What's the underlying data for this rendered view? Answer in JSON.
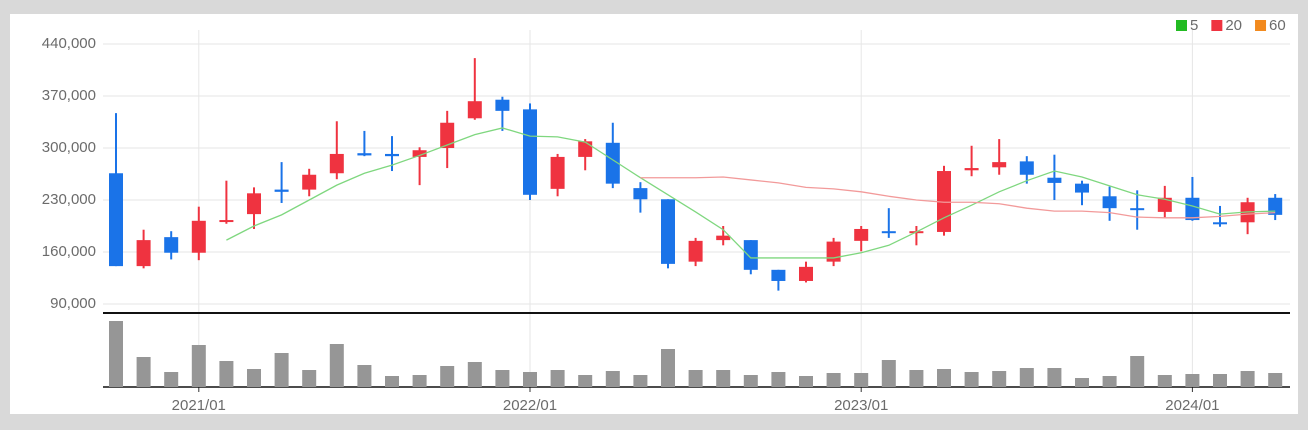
{
  "chart_data": {
    "type": "candlestick",
    "categories": [
      null,
      null,
      null,
      "2021/01",
      null,
      null,
      null,
      null,
      null,
      null,
      null,
      null,
      null,
      null,
      null,
      "2022/01",
      null,
      null,
      null,
      null,
      null,
      null,
      null,
      null,
      null,
      null,
      null,
      "2023/01",
      null,
      null,
      null,
      null,
      null,
      null,
      null,
      null,
      null,
      null,
      null,
      "2024/01",
      null,
      null,
      null
    ],
    "open": [
      266000,
      141000,
      180000,
      159000,
      201000,
      211000,
      244000,
      244000,
      266000,
      293000,
      292000,
      288000,
      300000,
      340000,
      365000,
      352000,
      245000,
      288000,
      307000,
      246000,
      231000,
      147000,
      176000,
      176000,
      136000,
      121000,
      147000,
      175000,
      188000,
      186000,
      187000,
      270000,
      274000,
      282000,
      260000,
      252000,
      235000,
      219000,
      214000,
      233000,
      200000,
      200000,
      233000
    ],
    "high": [
      347000,
      190000,
      188000,
      221000,
      256000,
      247000,
      281000,
      272000,
      336000,
      323000,
      316000,
      301000,
      350000,
      421000,
      369000,
      360000,
      292000,
      312000,
      334000,
      254000,
      231000,
      179000,
      195000,
      176000,
      136000,
      147000,
      179000,
      195000,
      219000,
      195000,
      276000,
      303000,
      312000,
      289000,
      291000,
      256000,
      248000,
      243000,
      249000,
      261000,
      222000,
      233000,
      238000
    ],
    "low": [
      141000,
      138000,
      150000,
      149000,
      198000,
      191000,
      226000,
      235000,
      258000,
      289000,
      269000,
      250000,
      273000,
      338000,
      323000,
      230000,
      235000,
      270000,
      246000,
      213000,
      138000,
      141000,
      169000,
      130000,
      108000,
      119000,
      141000,
      161000,
      179000,
      169000,
      182000,
      262000,
      264000,
      252000,
      230000,
      223000,
      202000,
      190000,
      206000,
      202000,
      194000,
      184000,
      203000
    ],
    "close": [
      141000,
      176000,
      159000,
      202000,
      203000,
      239000,
      241000,
      264000,
      292000,
      290000,
      289000,
      297000,
      334000,
      363000,
      350000,
      237000,
      288000,
      309000,
      252000,
      231000,
      144000,
      175000,
      182000,
      136000,
      121000,
      140000,
      174000,
      191000,
      186000,
      188000,
      269000,
      273000,
      281000,
      264000,
      253000,
      240000,
      219000,
      217000,
      233000,
      203000,
      198000,
      227000,
      210000
    ],
    "up_color": "#ef3340",
    "down_color": "#1a73e8",
    "series": [
      {
        "name": "5",
        "color": "#22bb22",
        "line_color": "#7fd77f",
        "values": [
          null,
          null,
          null,
          null,
          176000,
          195000,
          210000,
          230000,
          250000,
          266000,
          277000,
          290000,
          304000,
          318000,
          327000,
          316000,
          315000,
          308000,
          284000,
          260000,
          237000,
          214000,
          190000,
          152000,
          152000,
          152000,
          152000,
          159000,
          169000,
          187000,
          206000,
          223000,
          241000,
          256000,
          269000,
          261000,
          249000,
          237000,
          231000,
          222000,
          211000,
          214000,
          215000
        ]
      },
      {
        "name": "20",
        "color": "#ef3340",
        "line_color": "#f29a9a",
        "values": [
          null,
          null,
          null,
          null,
          null,
          null,
          null,
          null,
          null,
          null,
          null,
          null,
          null,
          null,
          null,
          null,
          null,
          null,
          null,
          260000,
          260000,
          260000,
          261000,
          257000,
          253000,
          247000,
          245000,
          241000,
          235000,
          230000,
          227000,
          227000,
          225000,
          219000,
          215000,
          215000,
          213000,
          207000,
          206000,
          206000,
          208000,
          211000,
          213000
        ]
      },
      {
        "name": "60",
        "color": "#f28a1e",
        "line_color": "#f5b26b",
        "values": [
          null,
          null,
          null,
          null,
          null,
          null,
          null,
          null,
          null,
          null,
          null,
          null,
          null,
          null,
          null,
          null,
          null,
          null,
          null,
          null,
          null,
          null,
          null,
          null,
          null,
          null,
          null,
          null,
          null,
          null,
          null,
          null,
          null,
          null,
          null,
          null,
          null,
          null,
          null,
          null,
          null,
          null,
          null
        ]
      }
    ],
    "volume": [
      66,
      30,
      15,
      42,
      26,
      18,
      34,
      17,
      43,
      22,
      11,
      12,
      21,
      25,
      17,
      15,
      17,
      12,
      16,
      12,
      38,
      17,
      17,
      12,
      15,
      11,
      14,
      14,
      27,
      17,
      18,
      15,
      16,
      19,
      19,
      9,
      11,
      31,
      12,
      13,
      13,
      16,
      14
    ],
    "volume_color": "#969696",
    "ylim": [
      90000,
      440000
    ],
    "yticks": [
      {
        "value": 90000,
        "label": "90,000"
      },
      {
        "value": 160000,
        "label": "160,000"
      },
      {
        "value": 230000,
        "label": "230,000"
      },
      {
        "value": 300000,
        "label": "300,000"
      },
      {
        "value": 370000,
        "label": "370,000"
      },
      {
        "value": 440000,
        "label": "440,000"
      }
    ],
    "grid": true,
    "legend": "top-right"
  }
}
